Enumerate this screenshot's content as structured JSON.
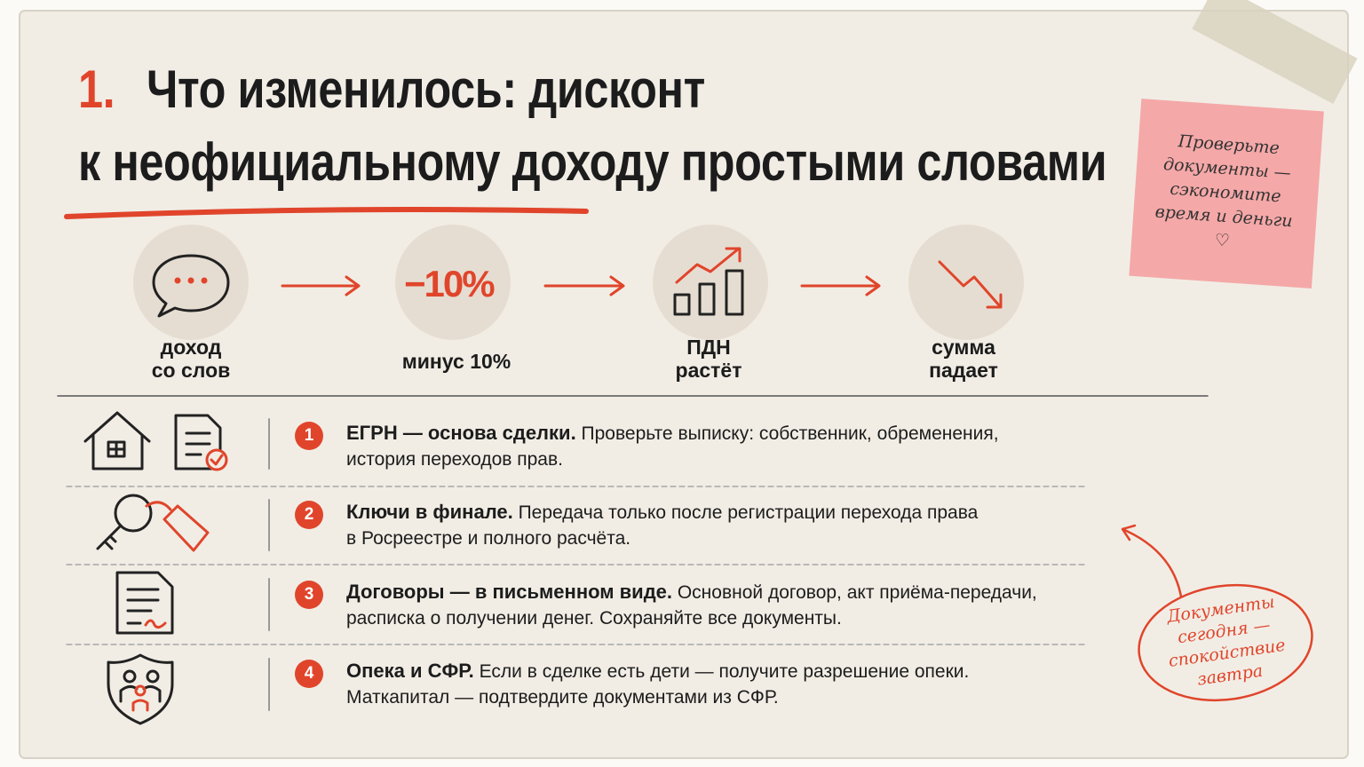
{
  "header": {
    "number": "1.",
    "title_lines": [
      "Что изменилось: дисконт",
      "к неофициальному доходу простыми словами"
    ]
  },
  "note": {
    "lines": [
      "Проверьте",
      "документы —",
      "сэкономите",
      "время и деньги",
      "♡"
    ]
  },
  "flow": [
    {
      "label_lines": [
        "доход",
        "со слов"
      ]
    },
    {
      "icon_text": "−10%",
      "label_lines": [
        "минус 10%"
      ]
    },
    {
      "label_lines": [
        "ПДН",
        "растёт"
      ]
    },
    {
      "label_lines": [
        "сумма",
        "падает"
      ]
    }
  ],
  "items": [
    {
      "number": "1",
      "bold": "ЕГРН — основа сделки.",
      "text": " Проверьте выписку: собственник, обременения,",
      "line2": "история переходов прав."
    },
    {
      "number": "2",
      "bold": "Ключи в финале.",
      "text": " Передача только после регистрации перехода права",
      "line2": "в Росреестре и полного расчёта."
    },
    {
      "number": "3",
      "bold": "Договоры — в письменном виде.",
      "text": " Основной договор, акт приёма-передачи,",
      "line2": "расписка о получении денег. Сохраняйте все документы."
    },
    {
      "number": "4",
      "bold": "Опека и СФР.",
      "text": " Если в сделке есть дети — получите разрешение опеки.",
      "line2": "Маткапитал — подтвердите документами из СФР."
    }
  ],
  "stamp": {
    "lines": [
      "Документы",
      "сегодня —",
      "спокойствие",
      "завтра"
    ]
  }
}
